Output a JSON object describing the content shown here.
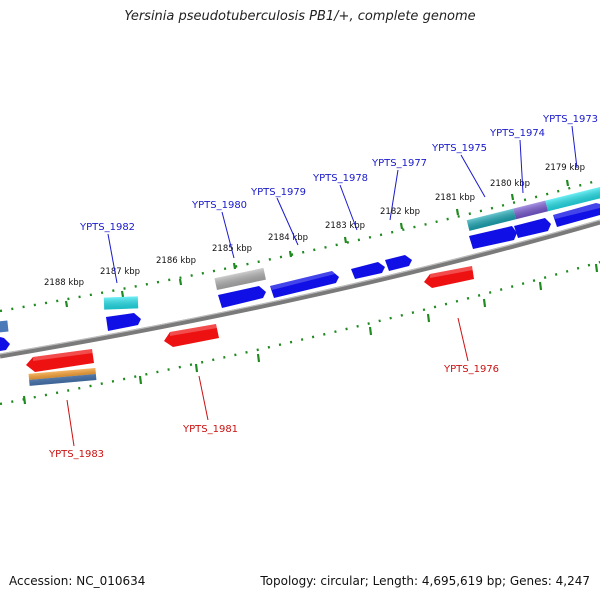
{
  "title": "Yersinia pseudotuberculosis PB1/+, complete genome",
  "footer": {
    "accession": "Accession: NC_010634",
    "summary": "Topology: circular; Length: 4,695,619 bp; Genes: 4,247"
  },
  "colors": {
    "backbone": "#7a7a7a",
    "tick": "#1f8a1f",
    "label_forward": "#1a1acc",
    "label_reverse": "#cc1111",
    "kbp_text": "#111111",
    "gene_blue": "#1010e6",
    "gene_cyan": "#22e6f0",
    "gene_teal": "#1aaab8",
    "gene_purple": "#7a5ad6",
    "gene_gray": "#b4b4b4",
    "gene_red": "#ee1111",
    "gene_orange": "#f08c10",
    "gene_steel": "#4a7ab8"
  },
  "kbp_labels": [
    "2179 kbp",
    "2180 kbp",
    "2181 kbp",
    "2182 kbp",
    "2183 kbp",
    "2184 kbp",
    "2185 kbp",
    "2186 kbp",
    "2187 kbp",
    "2188 kbp"
  ],
  "gene_labels_forward": [
    "YPTS_1973",
    "YPTS_1974",
    "YPTS_1975",
    "YPTS_1977",
    "YPTS_1978",
    "YPTS_1979",
    "YPTS_1980",
    "YPTS_1982"
  ],
  "gene_labels_reverse": [
    "YPTS_1976",
    "YPTS_1981",
    "YPTS_1983"
  ]
}
